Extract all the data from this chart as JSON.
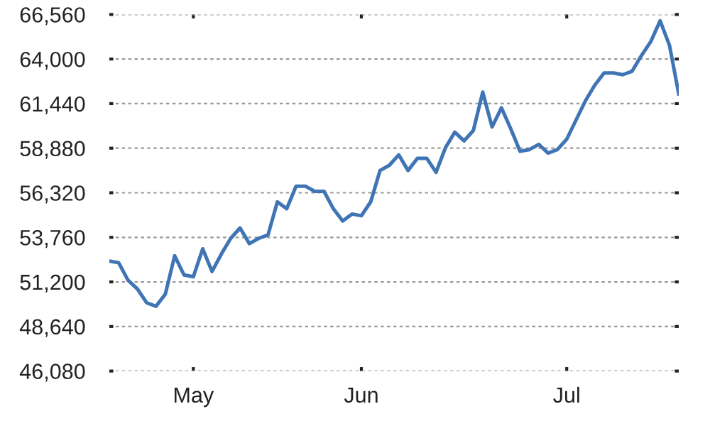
{
  "chart_data": {
    "type": "line",
    "color": "#3f74b5",
    "categories": [
      null,
      null,
      null,
      null,
      null,
      null,
      null,
      null,
      null,
      "May",
      null,
      null,
      null,
      null,
      null,
      null,
      null,
      null,
      null,
      null,
      null,
      null,
      null,
      null,
      null,
      null,
      null,
      "Jun",
      null,
      null,
      null,
      null,
      null,
      null,
      null,
      null,
      null,
      null,
      null,
      null,
      null,
      null,
      null,
      null,
      null,
      null,
      null,
      null,
      null,
      "Jul",
      null,
      null,
      null,
      null,
      null,
      null,
      null,
      null,
      null,
      null,
      null,
      null
    ],
    "values": [
      52400,
      52300,
      51300,
      50800,
      50000,
      49800,
      50500,
      52700,
      51600,
      51500,
      53100,
      51800,
      52800,
      53700,
      54300,
      53400,
      53700,
      53900,
      55800,
      55400,
      56700,
      56700,
      56400,
      56400,
      55400,
      54700,
      55100,
      55000,
      55800,
      57600,
      57900,
      58500,
      57600,
      58300,
      58300,
      57500,
      58900,
      59800,
      59300,
      59900,
      62100,
      60100,
      61200,
      60000,
      58700,
      58800,
      59100,
      58600,
      58800,
      59400,
      60500,
      61600,
      62500,
      63200,
      63200,
      63100,
      63300,
      64200,
      65000,
      66200,
      64800,
      62000
    ],
    "ylim": [
      46080,
      66560
    ],
    "yticks": [
      {
        "value": 46080,
        "label": "46,080"
      },
      {
        "value": 48640,
        "label": "48,640"
      },
      {
        "value": 51200,
        "label": "51,200"
      },
      {
        "value": 53760,
        "label": "53,760"
      },
      {
        "value": 56320,
        "label": "56,320"
      },
      {
        "value": 58880,
        "label": "58,880"
      },
      {
        "value": 61440,
        "label": "61,440"
      },
      {
        "value": 64000,
        "label": "64,000"
      },
      {
        "value": 66560,
        "label": "66,560"
      }
    ],
    "grid": "y",
    "line_style": "solid"
  }
}
